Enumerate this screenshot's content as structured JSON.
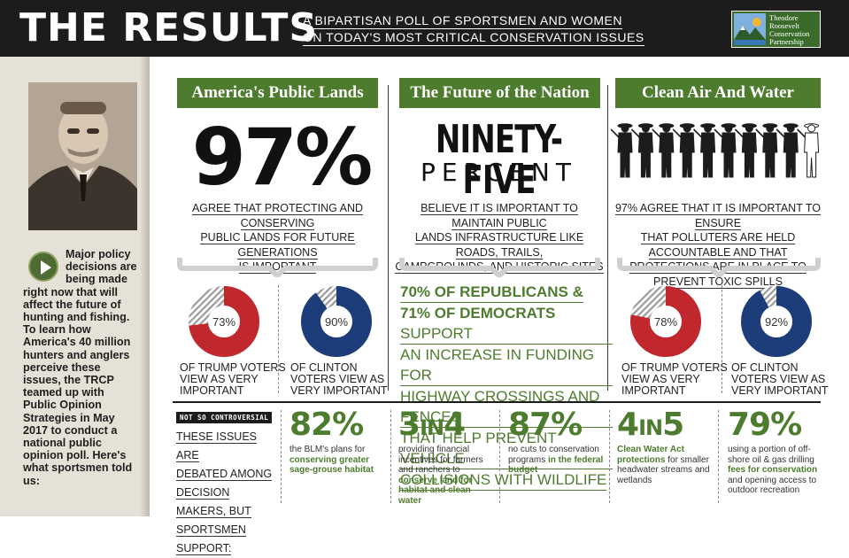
{
  "header": {
    "title": "THE RESULTS",
    "subtitle_line1": "A BIPARTISAN POLL OF SPORTSMEN AND WOMEN",
    "subtitle_line2": "ON TODAY'S MOST CRITICAL CONSERVATION ISSUES",
    "logo_line1": "Theodore",
    "logo_line2": "Roosevelt",
    "logo_line3": "Conservation",
    "logo_line4": "Partnership"
  },
  "sidebar": {
    "text_indent": "Major policy decisions are being made",
    "text_rest": "right now that will affect the future of hunting and fishing. To learn how America's 40 million hunters and anglers perceive these issues, the TRCP teamed up with Public Opinion Strategies in May 2017 to conduct a national public opinion poll. Here's what sportsmen told us:"
  },
  "columns": {
    "public_lands": {
      "heading": "America's Public Lands",
      "big_stat": "97%",
      "statement_l1": "AGREE THAT PROTECTING AND CONSERVING",
      "statement_l2": "PUBLIC LANDS FOR FUTURE GENERATIONS",
      "statement_l3": "IS IMPORTANT",
      "trump_pct_label": "73%",
      "trump_value": 73,
      "trump_label_l1": "OF TRUMP VOTERS",
      "trump_label_l2": "VIEW AS VERY",
      "trump_label_l3": "IMPORTANT",
      "clinton_pct_label": "90%",
      "clinton_value": 90,
      "clinton_label_l1": "OF CLINTON",
      "clinton_label_l2": "VOTERS VIEW AS",
      "clinton_label_l3": "VERY IMPORTANT"
    },
    "future": {
      "heading": "The Future of the Nation",
      "big_l1": "NINETY-FIVE",
      "big_l2": "PERCENT",
      "statement_l1": "BELIEVE IT IS IMPORTANT TO MAINTAIN PUBLIC",
      "statement_l2": "LANDS INFRASTRUCTURE LIKE ROADS, TRAILS,",
      "statement_l3": "CAMPGROUNDS, AND HISTORIC SITES",
      "green_l1": "70% OF REPUBLICANS &",
      "green_l2_bold": "71% OF DEMOCRATS",
      "green_l2_rest": " SUPPORT",
      "green_l3": "AN INCREASE IN FUNDING FOR",
      "green_l4": "HIGHWAY CROSSINGS AND FENCES",
      "green_l5": "THAT HELP PREVENT VEHICLE",
      "green_l6": "COLLISIONS WITH WILDLIFE"
    },
    "air_water": {
      "heading": "Clean Air And Water",
      "statement_l1": "97% AGREE THAT IT IS IMPORTANT TO ENSURE",
      "statement_l2": "THAT POLLUTERS ARE HELD ACCOUNTABLE AND THAT",
      "statement_l3": "PROTECTIONS ARE IN PLACE TO PREVENT TOXIC SPILLS",
      "trump_pct_label": "78%",
      "trump_value": 78,
      "trump_label_l1": "OF TRUMP VOTERS",
      "trump_label_l2": "VIEW AS VERY",
      "trump_label_l3": "IMPORTANT",
      "clinton_pct_label": "92%",
      "clinton_value": 92,
      "clinton_label_l1": "OF CLINTON",
      "clinton_label_l2": "VOTERS VIEW AS",
      "clinton_label_l3": "VERY IMPORTANT"
    }
  },
  "bottom": {
    "badge": "NOT SO CONTROVERSIAL",
    "intro_l1": "THESE ISSUES ARE",
    "intro_l2": "DEBATED AMONG",
    "intro_l3": "DECISION MAKERS, BUT",
    "intro_l4": "SPORTSMEN SUPPORT:",
    "stats": [
      {
        "num": "82%",
        "pre": "the BLM's plans for",
        "bold": "conserving greater sage-grouse habitat",
        "post": ""
      },
      {
        "num_a": "3",
        "num_mid": "IN",
        "num_b": "4",
        "pre": "providing financial incentives for farmers and ranchers to ",
        "bold": "conserve land for habitat and clean water",
        "post": ""
      },
      {
        "num": "87%",
        "pre": "no cuts to conservation programs ",
        "bold": "in the federal budget",
        "post": ""
      },
      {
        "num_a": "4",
        "num_mid": "IN",
        "num_b": "5",
        "pre": "",
        "bold": "Clean Water Act protections",
        "post": " for smaller headwater streams and wetlands"
      },
      {
        "num": "79%",
        "pre": "using a portion of off-shore oil & gas drilling ",
        "bold": "fees for conservation",
        "post": " and opening access to outdoor recreation"
      }
    ]
  },
  "colors": {
    "green": "#4e7c2e",
    "red": "#c0282d",
    "blue": "#1d3d7a",
    "dark": "#1c1c1c"
  }
}
